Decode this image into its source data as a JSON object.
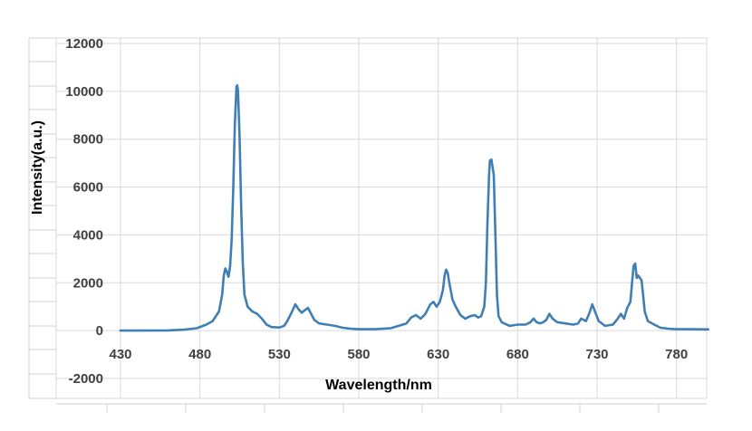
{
  "chart_data": {
    "type": "line",
    "title": "",
    "xlabel": "Wavelength/nm",
    "ylabel": "Intensity(a.u.)",
    "xlim": [
      430,
      800
    ],
    "ylim": [
      -2000,
      12000
    ],
    "x_ticks": [
      430,
      480,
      530,
      580,
      630,
      680,
      730,
      780
    ],
    "y_ticks": [
      -2000,
      0,
      2000,
      4000,
      6000,
      8000,
      10000,
      12000
    ],
    "grid": true,
    "legend": "none",
    "series": [
      {
        "color": "#3f7fb5",
        "points": [
          [
            430,
            0
          ],
          [
            460,
            10
          ],
          [
            470,
            40
          ],
          [
            478,
            100
          ],
          [
            484,
            250
          ],
          [
            488,
            400
          ],
          [
            492,
            800
          ],
          [
            494,
            1500
          ],
          [
            495,
            2300
          ],
          [
            496,
            2600
          ],
          [
            497,
            2450
          ],
          [
            498,
            2250
          ],
          [
            499,
            2700
          ],
          [
            500,
            3800
          ],
          [
            501,
            6000
          ],
          [
            502,
            8600
          ],
          [
            503,
            10200
          ],
          [
            503.5,
            10250
          ],
          [
            504,
            10000
          ],
          [
            505,
            8000
          ],
          [
            506,
            5000
          ],
          [
            507,
            2800
          ],
          [
            508,
            1500
          ],
          [
            510,
            1000
          ],
          [
            513,
            800
          ],
          [
            516,
            700
          ],
          [
            519,
            500
          ],
          [
            522,
            250
          ],
          [
            525,
            150
          ],
          [
            530,
            130
          ],
          [
            533,
            200
          ],
          [
            535,
            400
          ],
          [
            538,
            800
          ],
          [
            540,
            1100
          ],
          [
            542,
            900
          ],
          [
            544,
            750
          ],
          [
            546,
            850
          ],
          [
            548,
            950
          ],
          [
            550,
            700
          ],
          [
            552,
            450
          ],
          [
            555,
            300
          ],
          [
            560,
            250
          ],
          [
            565,
            200
          ],
          [
            570,
            120
          ],
          [
            575,
            80
          ],
          [
            580,
            60
          ],
          [
            590,
            60
          ],
          [
            600,
            100
          ],
          [
            605,
            200
          ],
          [
            610,
            300
          ],
          [
            613,
            550
          ],
          [
            616,
            650
          ],
          [
            619,
            500
          ],
          [
            622,
            700
          ],
          [
            625,
            1100
          ],
          [
            627,
            1200
          ],
          [
            629,
            1000
          ],
          [
            631,
            1200
          ],
          [
            633,
            1700
          ],
          [
            634,
            2300
          ],
          [
            635,
            2550
          ],
          [
            636,
            2400
          ],
          [
            637,
            2000
          ],
          [
            639,
            1300
          ],
          [
            641,
            1000
          ],
          [
            644,
            650
          ],
          [
            647,
            500
          ],
          [
            650,
            600
          ],
          [
            653,
            650
          ],
          [
            655,
            550
          ],
          [
            657,
            600
          ],
          [
            659,
            1000
          ],
          [
            660,
            2000
          ],
          [
            661,
            4500
          ],
          [
            662,
            6500
          ],
          [
            662.5,
            7100
          ],
          [
            663.5,
            7150
          ],
          [
            664.5,
            6700
          ],
          [
            665,
            6500
          ],
          [
            666,
            4000
          ],
          [
            667,
            1500
          ],
          [
            668,
            600
          ],
          [
            670,
            350
          ],
          [
            675,
            200
          ],
          [
            680,
            250
          ],
          [
            685,
            250
          ],
          [
            688,
            350
          ],
          [
            690,
            500
          ],
          [
            692,
            350
          ],
          [
            694,
            300
          ],
          [
            696,
            350
          ],
          [
            698,
            450
          ],
          [
            700,
            700
          ],
          [
            702,
            500
          ],
          [
            705,
            350
          ],
          [
            710,
            300
          ],
          [
            715,
            250
          ],
          [
            718,
            300
          ],
          [
            720,
            500
          ],
          [
            723,
            400
          ],
          [
            725,
            700
          ],
          [
            727,
            1100
          ],
          [
            729,
            750
          ],
          [
            731,
            400
          ],
          [
            735,
            200
          ],
          [
            740,
            250
          ],
          [
            743,
            500
          ],
          [
            745,
            700
          ],
          [
            747,
            500
          ],
          [
            749,
            950
          ],
          [
            751,
            1200
          ],
          [
            752,
            2000
          ],
          [
            753,
            2700
          ],
          [
            754,
            2800
          ],
          [
            755,
            2200
          ],
          [
            756,
            2300
          ],
          [
            757,
            2200
          ],
          [
            758,
            2100
          ],
          [
            759,
            1500
          ],
          [
            760,
            800
          ],
          [
            762,
            400
          ],
          [
            766,
            250
          ],
          [
            770,
            120
          ],
          [
            775,
            80
          ],
          [
            780,
            60
          ],
          [
            790,
            60
          ],
          [
            800,
            50
          ]
        ]
      }
    ]
  }
}
